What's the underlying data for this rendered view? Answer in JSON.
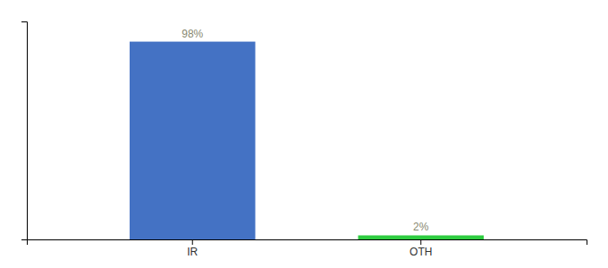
{
  "chart_data": {
    "type": "bar",
    "categories": [
      "IR",
      "OTH"
    ],
    "values": [
      98,
      2
    ],
    "value_labels": [
      "98%",
      "2%"
    ],
    "colors": [
      "#4472c4",
      "#2ecc40"
    ],
    "ylim": [
      0,
      108
    ],
    "data_labels": true,
    "tick_labels": "x"
  }
}
